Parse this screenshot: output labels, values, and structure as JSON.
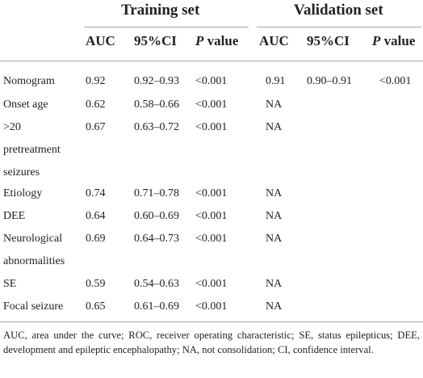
{
  "table": {
    "groups": {
      "training": "Training set",
      "validation": "Validation set"
    },
    "headers": {
      "training": {
        "auc": "AUC",
        "ci": "95%CI",
        "p_prefix": "P",
        "p_suffix": " value"
      },
      "validation": {
        "auc": "AUC",
        "ci": "95%CI",
        "p_prefix": "P",
        "p_suffix": " value"
      }
    },
    "rows": [
      {
        "label": [
          "Nomogram"
        ],
        "t_auc": "0.92",
        "t_ci": "0.92–0.93",
        "t_p": "<0.001",
        "v_auc": "0.91",
        "v_ci": "0.90–0.91",
        "v_p": "<0.001"
      },
      {
        "label": [
          "Onset age"
        ],
        "t_auc": "0.62",
        "t_ci": "0.58–0.66",
        "t_p": "<0.001",
        "v_auc": "NA",
        "v_ci": "",
        "v_p": ""
      },
      {
        "label": [
          ">20",
          "pretreatment",
          "seizures"
        ],
        "t_auc": "0.67",
        "t_ci": "0.63–0.72",
        "t_p": "<0.001",
        "v_auc": "NA",
        "v_ci": "",
        "v_p": ""
      },
      {
        "label": [
          "Etiology"
        ],
        "t_auc": "0.74",
        "t_ci": "0.71–0.78",
        "t_p": "<0.001",
        "v_auc": "NA",
        "v_ci": "",
        "v_p": ""
      },
      {
        "label": [
          "DEE"
        ],
        "t_auc": "0.64",
        "t_ci": "0.60–0.69",
        "t_p": "<0.001",
        "v_auc": "NA",
        "v_ci": "",
        "v_p": ""
      },
      {
        "label": [
          "Neurological",
          "abnormalities"
        ],
        "t_auc": "0.69",
        "t_ci": "0.64–0.73",
        "t_p": "<0.001",
        "v_auc": "NA",
        "v_ci": "",
        "v_p": ""
      },
      {
        "label": [
          "SE"
        ],
        "t_auc": "0.59",
        "t_ci": "0.54–0.63",
        "t_p": "<0.001",
        "v_auc": "NA",
        "v_ci": "",
        "v_p": ""
      },
      {
        "label": [
          "Focal seizure"
        ],
        "t_auc": "0.65",
        "t_ci": "0.61–0.69",
        "t_p": "<0.001",
        "v_auc": "NA",
        "v_ci": "",
        "v_p": ""
      }
    ],
    "footnote": "AUC, area under the curve; ROC, receiver operating characteristic; SE, status epilepticus; DEE, development and epileptic encephalopathy; NA, not consolidation; CI, confidence interval."
  }
}
